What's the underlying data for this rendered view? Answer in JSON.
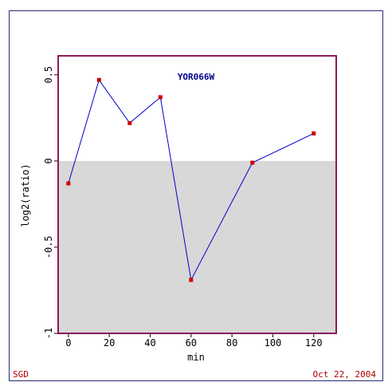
{
  "chart_data": {
    "type": "line",
    "title": "YOR066W",
    "xlabel": "min",
    "ylabel": "log2(ratio)",
    "xlim": [
      -5,
      131
    ],
    "ylim": [
      -1,
      0.61
    ],
    "x_ticks": [
      0,
      20,
      40,
      60,
      80,
      100,
      120
    ],
    "y_ticks": [
      -1,
      -0.5,
      0,
      0.5
    ],
    "x_tick_labels": [
      "0",
      "20",
      "40",
      "60",
      "80",
      "100",
      "120"
    ],
    "y_tick_labels": [
      "-1",
      "-0.5",
      "0",
      "0.5"
    ],
    "series": [
      {
        "x": [
          0,
          15,
          30,
          45,
          60,
          90,
          120
        ],
        "values": [
          -0.13,
          0.47,
          0.22,
          0.37,
          -0.69,
          -0.01,
          0.16
        ]
      }
    ],
    "negative_region_shaded": true,
    "colors": {
      "line": "#0000cc",
      "marker": "#cc0000",
      "frame": "#8b1a5a",
      "shade": "#d8d8d8"
    }
  },
  "footer": {
    "left": "SGD",
    "right": "Oct 22, 2004"
  }
}
